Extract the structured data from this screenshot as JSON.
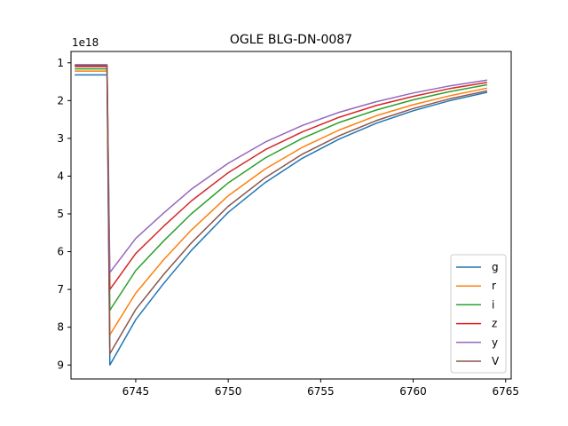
{
  "chart_data": {
    "type": "line",
    "title": "OGLE BLG-DN-0087",
    "xlabel": "",
    "ylabel": "",
    "y_offset_label": "1e18",
    "y_inverted": true,
    "xlim": [
      6741.5,
      6765.3
    ],
    "ylim": [
      9.37,
      0.7
    ],
    "x_ticks": [
      6745,
      6750,
      6755,
      6760,
      6765
    ],
    "y_ticks": [
      1,
      2,
      3,
      4,
      5,
      6,
      7,
      8,
      9
    ],
    "grid": false,
    "legend_position": "lower right",
    "series": [
      {
        "name": "g",
        "color": "#1f77b4",
        "points": [
          [
            6741.7,
            1.32
          ],
          [
            6743.45,
            1.32
          ],
          [
            6743.6,
            9.0
          ],
          [
            6745.0,
            7.8
          ],
          [
            6746.5,
            6.85
          ],
          [
            6748.0,
            5.97
          ],
          [
            6750.0,
            4.96
          ],
          [
            6752.0,
            4.17
          ],
          [
            6754.0,
            3.53
          ],
          [
            6756.0,
            3.02
          ],
          [
            6758.0,
            2.6
          ],
          [
            6760.0,
            2.27
          ],
          [
            6762.0,
            2.0
          ],
          [
            6764.0,
            1.78
          ]
        ]
      },
      {
        "name": "r",
        "color": "#ff7f0e",
        "points": [
          [
            6741.7,
            1.22
          ],
          [
            6743.45,
            1.22
          ],
          [
            6743.6,
            8.2
          ],
          [
            6745.0,
            7.1
          ],
          [
            6746.5,
            6.22
          ],
          [
            6748.0,
            5.43
          ],
          [
            6750.0,
            4.52
          ],
          [
            6752.0,
            3.81
          ],
          [
            6754.0,
            3.24
          ],
          [
            6756.0,
            2.78
          ],
          [
            6758.0,
            2.4
          ],
          [
            6760.0,
            2.11
          ],
          [
            6762.0,
            1.87
          ],
          [
            6764.0,
            1.67
          ]
        ]
      },
      {
        "name": "i",
        "color": "#2ca02c",
        "points": [
          [
            6741.7,
            1.16
          ],
          [
            6743.45,
            1.16
          ],
          [
            6743.6,
            7.55
          ],
          [
            6745.0,
            6.5
          ],
          [
            6746.5,
            5.72
          ],
          [
            6748.0,
            5.0
          ],
          [
            6750.0,
            4.18
          ],
          [
            6752.0,
            3.52
          ],
          [
            6754.0,
            3.0
          ],
          [
            6756.0,
            2.58
          ],
          [
            6758.0,
            2.25
          ],
          [
            6760.0,
            1.98
          ],
          [
            6762.0,
            1.76
          ],
          [
            6764.0,
            1.58
          ]
        ]
      },
      {
        "name": "z",
        "color": "#d62728",
        "points": [
          [
            6741.7,
            1.1
          ],
          [
            6743.45,
            1.1
          ],
          [
            6743.6,
            7.0
          ],
          [
            6745.0,
            6.05
          ],
          [
            6746.5,
            5.33
          ],
          [
            6748.0,
            4.66
          ],
          [
            6750.0,
            3.91
          ],
          [
            6752.0,
            3.3
          ],
          [
            6754.0,
            2.83
          ],
          [
            6756.0,
            2.44
          ],
          [
            6758.0,
            2.13
          ],
          [
            6760.0,
            1.89
          ],
          [
            6762.0,
            1.68
          ],
          [
            6764.0,
            1.52
          ]
        ]
      },
      {
        "name": "y",
        "color": "#9467bd",
        "points": [
          [
            6741.7,
            1.05
          ],
          [
            6743.45,
            1.05
          ],
          [
            6743.6,
            6.55
          ],
          [
            6745.0,
            5.65
          ],
          [
            6746.5,
            4.98
          ],
          [
            6748.0,
            4.35
          ],
          [
            6750.0,
            3.66
          ],
          [
            6752.0,
            3.1
          ],
          [
            6754.0,
            2.66
          ],
          [
            6756.0,
            2.31
          ],
          [
            6758.0,
            2.03
          ],
          [
            6760.0,
            1.8
          ],
          [
            6762.0,
            1.61
          ],
          [
            6764.0,
            1.46
          ]
        ]
      },
      {
        "name": "V",
        "color": "#8c564b",
        "points": [
          [
            6741.7,
            1.07
          ],
          [
            6743.45,
            1.07
          ],
          [
            6743.6,
            8.7
          ],
          [
            6745.0,
            7.53
          ],
          [
            6746.5,
            6.61
          ],
          [
            6748.0,
            5.77
          ],
          [
            6750.0,
            4.8
          ],
          [
            6752.0,
            4.04
          ],
          [
            6754.0,
            3.42
          ],
          [
            6756.0,
            2.93
          ],
          [
            6758.0,
            2.53
          ],
          [
            6760.0,
            2.21
          ],
          [
            6762.0,
            1.95
          ],
          [
            6764.0,
            1.74
          ]
        ]
      }
    ]
  }
}
